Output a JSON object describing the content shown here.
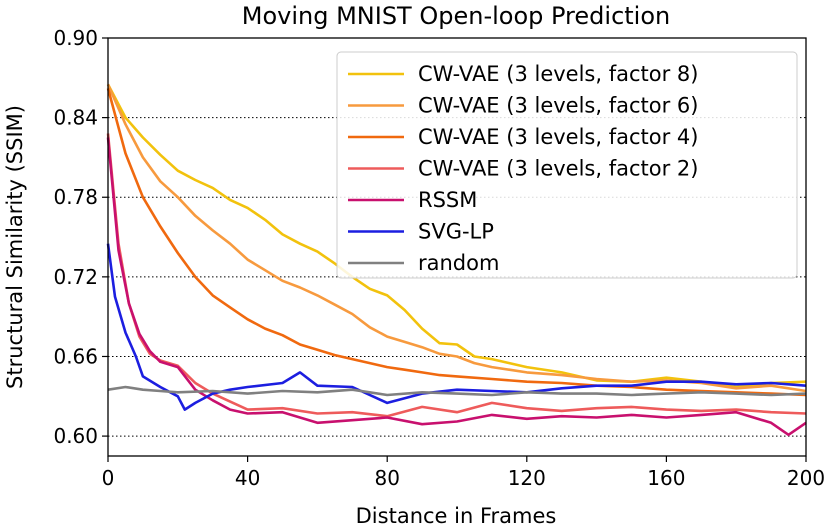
{
  "chart_data": {
    "type": "line",
    "title": "Moving MNIST Open-loop Prediction",
    "xlabel": "Distance in Frames",
    "ylabel": "Structural Similarity (SSIM)",
    "xlim": [
      0,
      200
    ],
    "ylim": [
      0.585,
      0.9
    ],
    "xticks": [
      0,
      40,
      80,
      120,
      160,
      200
    ],
    "xtick_labels": [
      "0",
      "40",
      "80",
      "120",
      "160",
      "200"
    ],
    "yticks": [
      0.6,
      0.66,
      0.72,
      0.78,
      0.84,
      0.9
    ],
    "ytick_labels": [
      "0.60",
      "0.66",
      "0.72",
      "0.78",
      "0.84",
      "0.90"
    ],
    "grid": "horizontal dotted",
    "legend_position": "top-right",
    "series": [
      {
        "name": "CW-VAE (3 levels, factor 8)",
        "color": "#f2c20d",
        "x": [
          0,
          5,
          10,
          15,
          20,
          25,
          30,
          35,
          40,
          45,
          50,
          55,
          60,
          65,
          70,
          75,
          80,
          85,
          90,
          95,
          100,
          105,
          110,
          115,
          120,
          130,
          140,
          150,
          160,
          170,
          180,
          190,
          200
        ],
        "y": [
          0.865,
          0.84,
          0.825,
          0.812,
          0.8,
          0.793,
          0.787,
          0.778,
          0.772,
          0.763,
          0.752,
          0.745,
          0.739,
          0.73,
          0.72,
          0.711,
          0.706,
          0.695,
          0.681,
          0.67,
          0.669,
          0.66,
          0.658,
          0.655,
          0.652,
          0.648,
          0.642,
          0.641,
          0.644,
          0.641,
          0.637,
          0.64,
          0.641
        ]
      },
      {
        "name": "CW-VAE (3 levels, factor 6)",
        "color": "#f79a3e",
        "x": [
          0,
          5,
          10,
          15,
          20,
          25,
          30,
          35,
          40,
          45,
          50,
          55,
          60,
          65,
          70,
          75,
          80,
          85,
          90,
          95,
          100,
          105,
          110,
          115,
          120,
          130,
          140,
          150,
          160,
          170,
          180,
          190,
          200
        ],
        "y": [
          0.865,
          0.835,
          0.81,
          0.792,
          0.78,
          0.766,
          0.755,
          0.745,
          0.733,
          0.725,
          0.717,
          0.712,
          0.706,
          0.699,
          0.692,
          0.682,
          0.675,
          0.671,
          0.667,
          0.662,
          0.66,
          0.655,
          0.652,
          0.65,
          0.648,
          0.646,
          0.643,
          0.641,
          0.642,
          0.64,
          0.636,
          0.638,
          0.634
        ]
      },
      {
        "name": "CW-VAE (3 levels, factor 4)",
        "color": "#f0690f",
        "x": [
          0,
          5,
          10,
          15,
          20,
          25,
          30,
          35,
          40,
          45,
          50,
          55,
          60,
          65,
          70,
          75,
          80,
          85,
          90,
          95,
          100,
          110,
          120,
          130,
          140,
          150,
          160,
          170,
          180,
          190,
          200
        ],
        "y": [
          0.862,
          0.813,
          0.78,
          0.758,
          0.738,
          0.72,
          0.706,
          0.697,
          0.688,
          0.681,
          0.676,
          0.669,
          0.665,
          0.661,
          0.658,
          0.655,
          0.652,
          0.65,
          0.648,
          0.646,
          0.645,
          0.643,
          0.641,
          0.64,
          0.638,
          0.637,
          0.635,
          0.634,
          0.633,
          0.632,
          0.631
        ]
      },
      {
        "name": "CW-VAE (3 levels, factor 2)",
        "color": "#ee5b5b",
        "x": [
          0,
          3,
          6,
          9,
          12,
          15,
          20,
          25,
          30,
          35,
          40,
          50,
          60,
          70,
          80,
          90,
          100,
          110,
          120,
          130,
          140,
          150,
          160,
          170,
          180,
          190,
          200
        ],
        "y": [
          0.828,
          0.745,
          0.7,
          0.675,
          0.662,
          0.657,
          0.653,
          0.64,
          0.632,
          0.626,
          0.62,
          0.621,
          0.617,
          0.618,
          0.615,
          0.622,
          0.618,
          0.625,
          0.621,
          0.619,
          0.621,
          0.622,
          0.62,
          0.619,
          0.62,
          0.618,
          0.617
        ]
      },
      {
        "name": "RSSM",
        "color": "#c8106e",
        "x": [
          0,
          3,
          6,
          9,
          12,
          15,
          20,
          25,
          30,
          35,
          40,
          50,
          60,
          70,
          80,
          90,
          100,
          110,
          120,
          130,
          140,
          150,
          160,
          170,
          180,
          190,
          195,
          200
        ],
        "y": [
          0.825,
          0.74,
          0.7,
          0.677,
          0.664,
          0.656,
          0.652,
          0.635,
          0.627,
          0.62,
          0.617,
          0.618,
          0.61,
          0.612,
          0.614,
          0.609,
          0.611,
          0.616,
          0.613,
          0.615,
          0.614,
          0.616,
          0.614,
          0.616,
          0.618,
          0.61,
          0.601,
          0.61
        ]
      },
      {
        "name": "SVG-LP",
        "color": "#1c1ee0",
        "x": [
          0,
          2,
          5,
          8,
          10,
          15,
          20,
          22,
          25,
          30,
          35,
          40,
          50,
          55,
          60,
          70,
          80,
          90,
          100,
          110,
          120,
          130,
          140,
          150,
          160,
          170,
          180,
          190,
          200
        ],
        "y": [
          0.745,
          0.705,
          0.678,
          0.66,
          0.645,
          0.637,
          0.63,
          0.62,
          0.625,
          0.632,
          0.635,
          0.637,
          0.64,
          0.648,
          0.638,
          0.637,
          0.625,
          0.632,
          0.635,
          0.634,
          0.633,
          0.636,
          0.638,
          0.638,
          0.641,
          0.641,
          0.639,
          0.64,
          0.638
        ]
      },
      {
        "name": "random",
        "color": "#808080",
        "x": [
          0,
          5,
          10,
          15,
          20,
          30,
          40,
          50,
          60,
          70,
          80,
          90,
          100,
          110,
          120,
          130,
          140,
          150,
          160,
          170,
          180,
          190,
          200
        ],
        "y": [
          0.635,
          0.637,
          0.635,
          0.634,
          0.633,
          0.634,
          0.632,
          0.634,
          0.633,
          0.635,
          0.631,
          0.633,
          0.632,
          0.631,
          0.633,
          0.632,
          0.632,
          0.631,
          0.632,
          0.633,
          0.632,
          0.631,
          0.632
        ]
      }
    ]
  }
}
